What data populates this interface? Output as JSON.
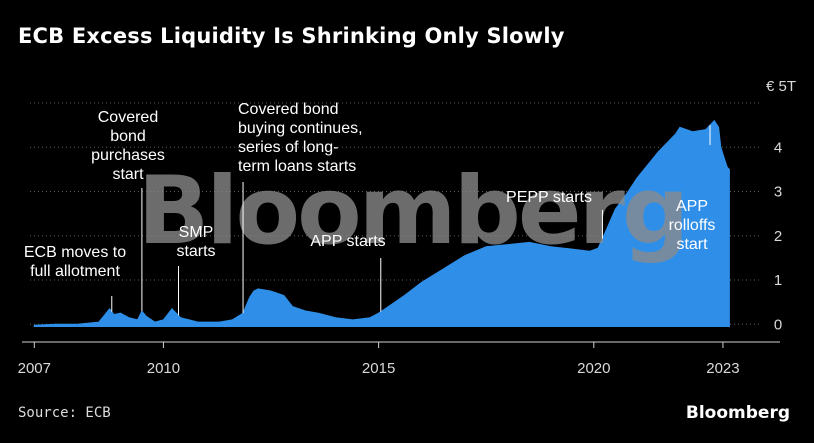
{
  "title": "ECB Excess Liquidity Is Shrinking Only Slowly",
  "source": "Source: ECB",
  "brand": "Bloomberg",
  "watermark": "Bloomberg",
  "chart_data": {
    "type": "area",
    "title": "ECB Excess Liquidity Is Shrinking Only Slowly",
    "unit_label": "€ 5T",
    "ylim": [
      -0.4,
      5.0
    ],
    "xlim": [
      2006.9,
      2023.35
    ],
    "grid": true,
    "y_ticks": [
      "0",
      "1",
      "2",
      "3",
      "4"
    ],
    "x_ticks": [
      "2007",
      "2010",
      "2015",
      "2020",
      "2023"
    ],
    "color": "#2f8fe8",
    "series": [
      {
        "x": [
          2007.0,
          2007.5,
          2008.0,
          2008.5,
          2008.75,
          2008.85,
          2009.0,
          2009.2,
          2009.4,
          2009.5,
          2009.6,
          2009.8,
          2010.0,
          2010.2,
          2010.4,
          2010.6,
          2010.8,
          2011.0,
          2011.3,
          2011.6,
          2011.85,
          2012.0,
          2012.1,
          2012.2,
          2012.5,
          2012.8,
          2013.0,
          2013.3,
          2013.6,
          2014.0,
          2014.4,
          2014.8,
          2015.0,
          2015.3,
          2015.6,
          2016.0,
          2016.5,
          2017.0,
          2017.5,
          2018.0,
          2018.5,
          2019.0,
          2019.5,
          2019.9,
          2020.1,
          2020.3,
          2020.5,
          2020.8,
          2021.0,
          2021.5,
          2021.9,
          2022.0,
          2022.3,
          2022.6,
          2022.8,
          2022.9,
          2022.95,
          2023.0,
          2023.1,
          2023.15
        ],
        "y": [
          -0.02,
          0.0,
          0.0,
          0.05,
          0.35,
          0.22,
          0.25,
          0.15,
          0.1,
          0.3,
          0.18,
          0.05,
          0.1,
          0.35,
          0.15,
          0.1,
          0.05,
          0.05,
          0.05,
          0.1,
          0.25,
          0.6,
          0.75,
          0.8,
          0.75,
          0.65,
          0.4,
          0.3,
          0.25,
          0.15,
          0.1,
          0.15,
          0.25,
          0.45,
          0.65,
          0.95,
          1.25,
          1.55,
          1.75,
          1.8,
          1.85,
          1.75,
          1.7,
          1.65,
          1.72,
          2.15,
          2.6,
          3.0,
          3.3,
          3.9,
          4.3,
          4.45,
          4.35,
          4.4,
          4.6,
          4.45,
          4.0,
          3.85,
          3.55,
          3.5
        ]
      }
    ],
    "annotations": [
      {
        "x": 2008.8,
        "lines": [
          "ECB moves to",
          "full allotment"
        ]
      },
      {
        "x": 2009.5,
        "lines": [
          "Covered",
          "bond",
          "purchases",
          "start"
        ]
      },
      {
        "x": 2010.35,
        "lines": [
          "SMP",
          "starts"
        ]
      },
      {
        "x": 2011.85,
        "lines": [
          "Covered bond",
          "buying continues,",
          "series of long-",
          "term loans starts"
        ]
      },
      {
        "x": 2015.05,
        "lines": [
          "APP starts"
        ]
      },
      {
        "x": 2020.2,
        "lines": [
          "PEPP starts"
        ]
      },
      {
        "x": 2022.7,
        "lines": [
          "APP",
          "rolloffs",
          "start"
        ]
      }
    ]
  }
}
